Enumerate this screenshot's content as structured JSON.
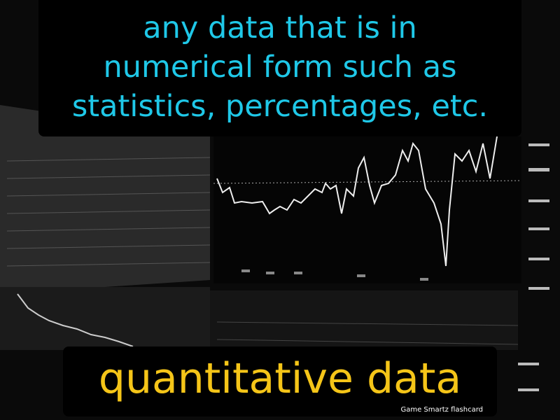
{
  "definition": {
    "lines": [
      "any data that is in",
      "numerical form such as",
      "statistics, percentages, etc."
    ]
  },
  "term": "quantitative data",
  "brand": "Game Smartz flashcard"
}
